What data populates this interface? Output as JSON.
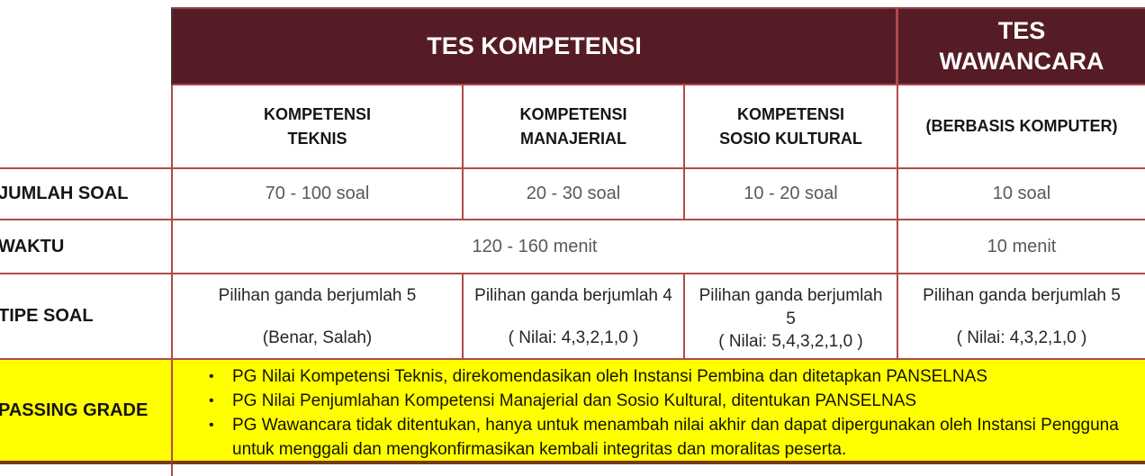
{
  "colors": {
    "maroon_header": "#561c25",
    "border_red": "#b04a4a",
    "border_brown": "#793a10",
    "passing_grade_yellow": "#ffff00",
    "value_gray": "#595959"
  },
  "table": {
    "group_headers": {
      "kompetensi": "TES KOMPETENSI",
      "wawancara": "TES WAWANCARA"
    },
    "column_headers": {
      "teknis": "KOMPETENSI\nTEKNIS",
      "manajerial": "KOMPETENSI\nMANAJERIAL",
      "sosio": "KOMPETENSI\nSOSIO KULTURAL",
      "wawancara": "(BERBASIS KOMPUTER)"
    },
    "jumlah_soal": {
      "label": "JUMLAH SOAL",
      "teknis": "70 - 100 soal",
      "manajerial": "20 - 30 soal",
      "sosio": "10 - 20 soal",
      "wawancara": "10 soal"
    },
    "waktu": {
      "label": "WAKTU",
      "kompetensi": "120 - 160 menit",
      "wawancara": "10 menit"
    },
    "tipe_soal": {
      "label": "TIPE SOAL",
      "teknis": {
        "top": "Pilihan ganda berjumlah 5",
        "bottom": "(Benar, Salah)"
      },
      "manajerial": {
        "top": "Pilihan ganda berjumlah 4",
        "bottom": "( Nilai: 4,3,2,1,0 )"
      },
      "sosio": {
        "top": "Pilihan ganda berjumlah 5",
        "bottom": "( Nilai: 5,4,3,2,1,0 )"
      },
      "wawancara": {
        "top": "Pilihan ganda berjumlah 5",
        "bottom": "( Nilai: 4,3,2,1,0 )"
      }
    },
    "passing_grade": {
      "label": "PASSING GRADE",
      "bullet_glyph": "•",
      "bullets": [
        "PG Nilai Kompetensi Teknis, direkomendasikan oleh Instansi Pembina dan ditetapkan PANSELNAS",
        "PG Nilai Penjumlahan Kompetensi Manajerial dan Sosio Kultural, ditentukan PANSELNAS",
        "PG Wawancara tidak ditentukan, hanya untuk menambah nilai akhir dan dapat dipergunakan oleh Instansi Pengguna untuk menggali dan mengkonfirmasikan kembali integritas dan moralitas peserta."
      ]
    }
  }
}
